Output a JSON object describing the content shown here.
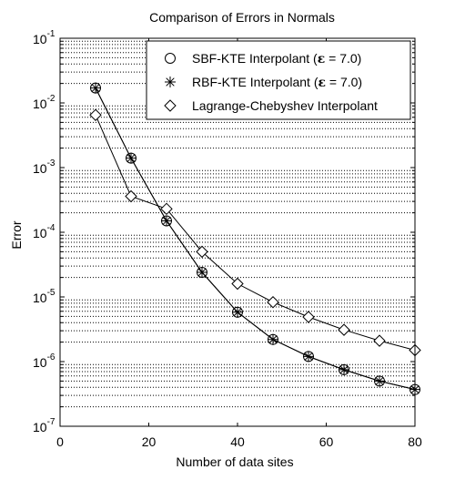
{
  "chart_data": {
    "type": "line",
    "title": "Comparison of Errors in Normals",
    "xlabel": "Number of data sites",
    "ylabel": "Error",
    "xlim": [
      0,
      80
    ],
    "ylim_exp": [
      -7,
      -1
    ],
    "yscale": "log",
    "grid": "minor dotted on y axis",
    "x_ticks": [
      "0",
      "20",
      "40",
      "60",
      "80"
    ],
    "y_tick_base": "10",
    "y_tick_exponents": [
      "-7",
      "-6",
      "-5",
      "-4",
      "-3",
      "-2",
      "-1"
    ],
    "legend_position": "top-right",
    "series": [
      {
        "name": "SBF-KTE Interpolant",
        "name_eps": "ε",
        "name_suffix": " = 7.0)",
        "marker": "circle",
        "x": [
          8,
          16,
          24,
          32,
          40,
          48,
          56,
          64,
          72,
          80
        ],
        "y": [
          0.017,
          0.0014,
          0.00015,
          2.4e-05,
          5.8e-06,
          2.2e-06,
          1.2e-06,
          7.5e-07,
          5e-07,
          3.7e-07
        ]
      },
      {
        "name": "RBF-KTE Interpolant",
        "name_eps": "ε",
        "name_suffix": " = 7.0)",
        "marker": "asterisk",
        "x": [
          8,
          16,
          24,
          32,
          40,
          48,
          56,
          64,
          72,
          80
        ],
        "y": [
          0.017,
          0.0014,
          0.00015,
          2.4e-05,
          5.8e-06,
          2.2e-06,
          1.2e-06,
          7.5e-07,
          5e-07,
          3.7e-07
        ]
      },
      {
        "name": "Lagrange-Chebyshev Interpolant",
        "marker": "diamond",
        "x": [
          8,
          16,
          24,
          32,
          40,
          48,
          56,
          64,
          72,
          80
        ],
        "y": [
          0.0065,
          0.00036,
          0.00023,
          5e-05,
          1.6e-05,
          8.3e-06,
          4.9e-06,
          3.1e-06,
          2.1e-06,
          1.5e-06
        ]
      }
    ]
  }
}
